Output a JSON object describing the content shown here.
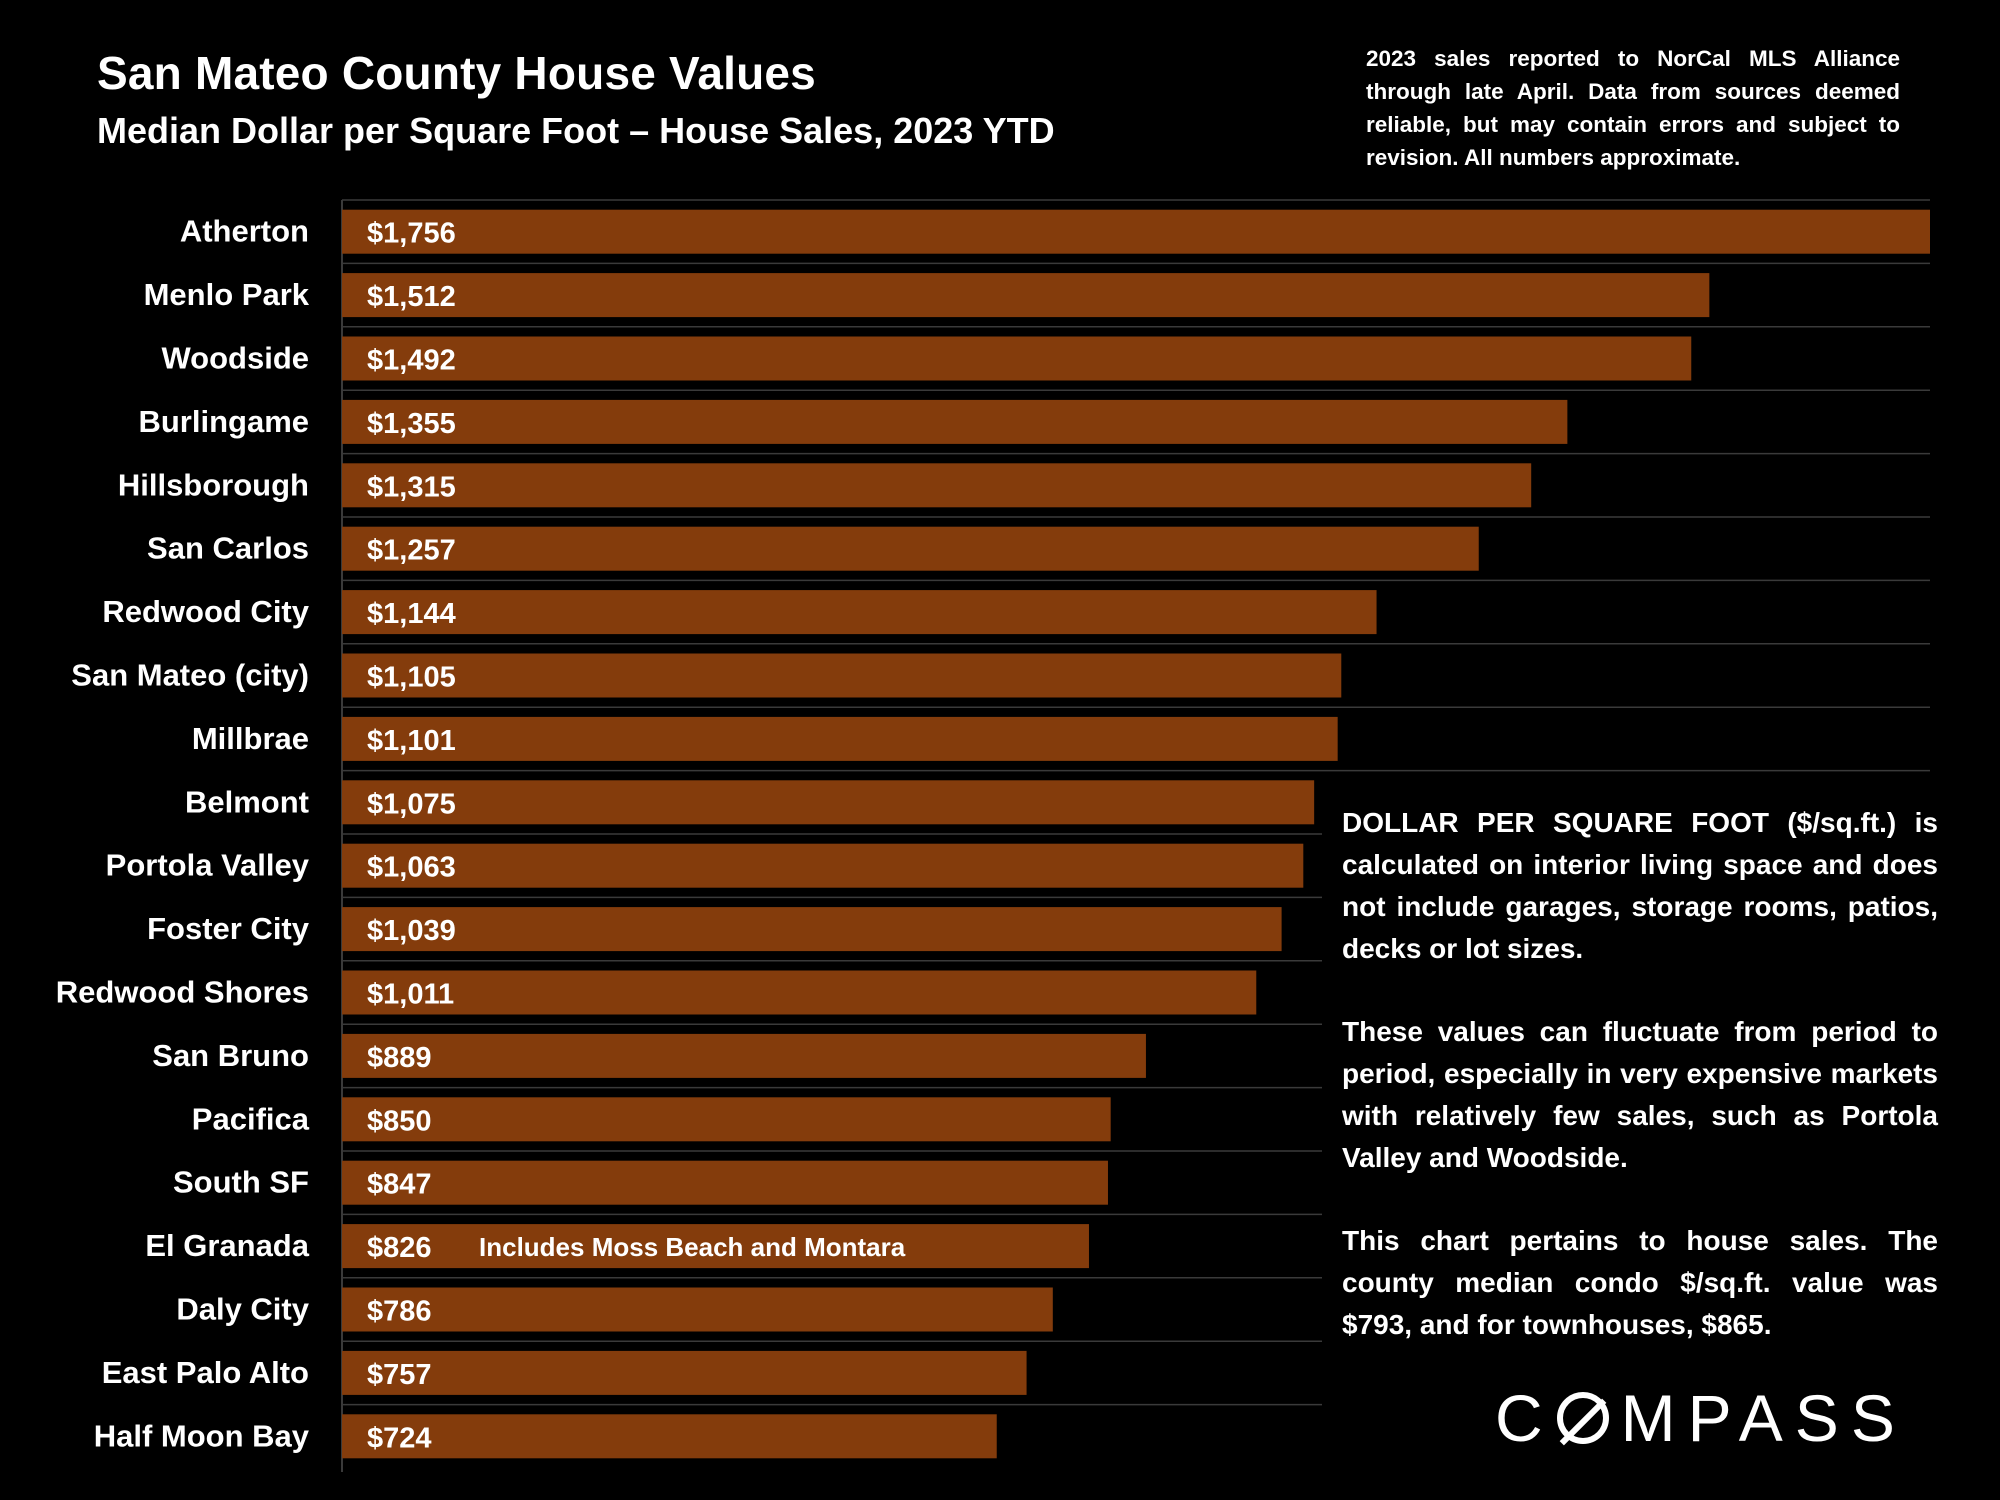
{
  "header": {
    "title": "San Mateo County House Values",
    "subtitle": "Median Dollar per Square Foot – House Sales, 2023 YTD",
    "note": "2023 sales reported to NorCal MLS Alliance through late April. Data from sources deemed reliable, but may contain errors and subject to revision. All numbers approximate."
  },
  "sidebar_notes": [
    "DOLLAR PER SQUARE FOOT ($/sq.ft.) is calculated on interior living space and does not include garages, storage rooms, patios, decks or lot sizes.",
    "These values can fluctuate from period to period, especially in very expensive markets with relatively few sales, such as Portola Valley and Woodside.",
    "This chart pertains to house sales. The county median condo $/sq.ft. value was $793, and for townhouses, $865."
  ],
  "logo": {
    "text_before": "C",
    "text_after": "MPASS"
  },
  "colors": {
    "bar": "#843C0C",
    "background": "#000000",
    "gridline": "#3a3a3a",
    "text": "#ffffff"
  },
  "chart_data": {
    "type": "bar",
    "orientation": "horizontal",
    "categories": [
      "Atherton",
      "Menlo Park",
      "Woodside",
      "Burlingame",
      "Hillsborough",
      "San Carlos",
      "Redwood City",
      "San Mateo (city)",
      "Millbrae",
      "Belmont",
      "Portola Valley",
      "Foster City",
      "Redwood Shores",
      "San Bruno",
      "Pacifica",
      "South SF",
      "El Granada",
      "Daly City",
      "East Palo Alto",
      "Half Moon Bay"
    ],
    "values": [
      1756,
      1512,
      1492,
      1355,
      1315,
      1257,
      1144,
      1105,
      1101,
      1075,
      1063,
      1039,
      1011,
      889,
      850,
      847,
      826,
      786,
      757,
      724
    ],
    "value_labels": [
      "$1,756",
      "$1,512",
      "$1,492",
      "$1,355",
      "$1,315",
      "$1,257",
      "$1,144",
      "$1,105",
      "$1,101",
      "$1,075",
      "$1,063",
      "$1,039",
      "$1,011",
      "$889",
      "$850",
      "$847",
      "$826",
      "$786",
      "$757",
      "$724"
    ],
    "annotations": [
      {
        "category": "El Granada",
        "text": "Includes Moss Beach and Montara"
      }
    ],
    "xlim": [
      0,
      1756
    ],
    "grid": true
  }
}
